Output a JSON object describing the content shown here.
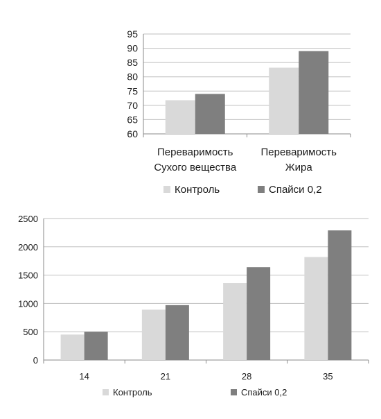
{
  "chart_data": [
    {
      "type": "bar",
      "categories": [
        [
          "Переваримость",
          "Сухого вещества"
        ],
        [
          "Переваримость",
          "Жира"
        ]
      ],
      "series": [
        {
          "name": "Контроль",
          "values": [
            71.8,
            83.2
          ],
          "color": "#d9d9d9"
        },
        {
          "name": "Спайси 0,2",
          "values": [
            74.0,
            89.0
          ],
          "color": "#7f7f7f"
        }
      ],
      "ylim": [
        60,
        95
      ],
      "yticks": [
        "60",
        "65",
        "70",
        "75",
        "80",
        "85",
        "90",
        "95"
      ],
      "grid": true,
      "legend": "bottom"
    },
    {
      "type": "bar",
      "categories": [
        "14",
        "21",
        "28",
        "35"
      ],
      "series": [
        {
          "name": "Контроль",
          "values": [
            450,
            890,
            1360,
            1820
          ],
          "color": "#d9d9d9"
        },
        {
          "name": "Спайси 0,2",
          "values": [
            500,
            970,
            1640,
            2290
          ],
          "color": "#7f7f7f"
        }
      ],
      "ylim": [
        0,
        2500
      ],
      "yticks": [
        "0",
        "500",
        "1000",
        "1500",
        "2000",
        "2500"
      ],
      "grid": true,
      "legend": "bottom"
    }
  ]
}
